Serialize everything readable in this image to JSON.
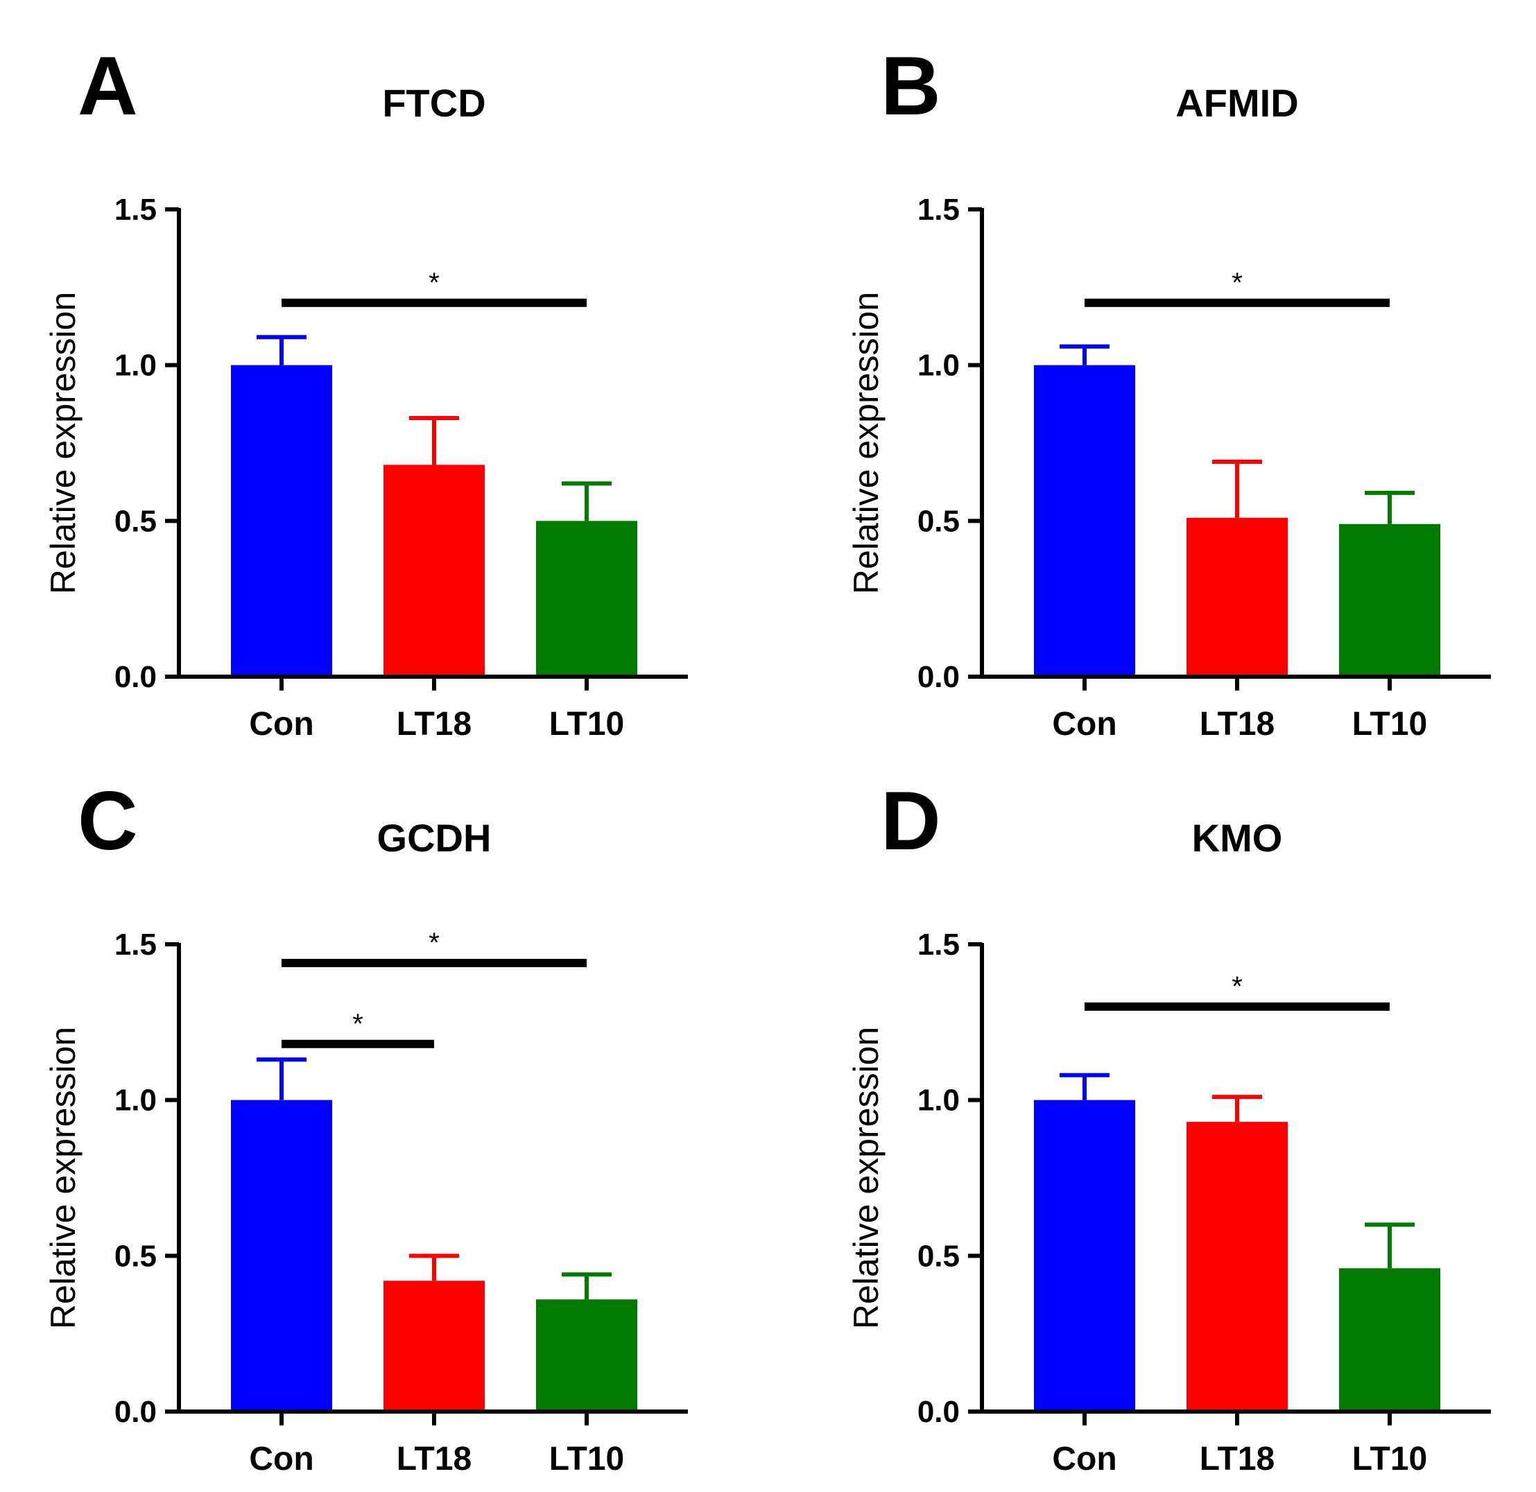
{
  "figure": {
    "background": "#ffffff"
  },
  "chart_data": [
    {
      "type": "bar",
      "panel": "A",
      "title": "FTCD",
      "xlabel": "",
      "ylabel": "Relative expression",
      "ylim": [
        0,
        1.5
      ],
      "yticks": [
        0.0,
        0.5,
        1.0,
        1.5
      ],
      "ytick_labels": [
        "0.0",
        "0.5",
        "1.0",
        "1.5"
      ],
      "categories": [
        "Con",
        "LT18",
        "LT10"
      ],
      "values": [
        1.0,
        0.68,
        0.5
      ],
      "errors": [
        0.09,
        0.15,
        0.12
      ],
      "colors": [
        "#0000ff",
        "#ff0000",
        "#007a00"
      ],
      "significance": [
        {
          "from": 0,
          "to": 2,
          "label": "*",
          "y": 1.2
        }
      ]
    },
    {
      "type": "bar",
      "panel": "B",
      "title": "AFMID",
      "xlabel": "",
      "ylabel": "Relative expression",
      "ylim": [
        0,
        1.5
      ],
      "yticks": [
        0.0,
        0.5,
        1.0,
        1.5
      ],
      "ytick_labels": [
        "0.0",
        "0.5",
        "1.0",
        "1.5"
      ],
      "categories": [
        "Con",
        "LT18",
        "LT10"
      ],
      "values": [
        1.0,
        0.51,
        0.49
      ],
      "errors": [
        0.06,
        0.18,
        0.1
      ],
      "colors": [
        "#0000ff",
        "#ff0000",
        "#007a00"
      ],
      "significance": [
        {
          "from": 0,
          "to": 2,
          "label": "*",
          "y": 1.2
        }
      ]
    },
    {
      "type": "bar",
      "panel": "C",
      "title": "GCDH",
      "xlabel": "",
      "ylabel": "Relative expression",
      "ylim": [
        0,
        1.5
      ],
      "yticks": [
        0.0,
        0.5,
        1.0,
        1.5
      ],
      "ytick_labels": [
        "0.0",
        "0.5",
        "1.0",
        "1.5"
      ],
      "categories": [
        "Con",
        "LT18",
        "LT10"
      ],
      "values": [
        1.0,
        0.42,
        0.36
      ],
      "errors": [
        0.13,
        0.08,
        0.08
      ],
      "colors": [
        "#0000ff",
        "#ff0000",
        "#007a00"
      ],
      "significance": [
        {
          "from": 0,
          "to": 2,
          "label": "*",
          "y": 1.44
        },
        {
          "from": 0,
          "to": 1,
          "label": "*",
          "y": 1.18
        }
      ]
    },
    {
      "type": "bar",
      "panel": "D",
      "title": "KMO",
      "xlabel": "",
      "ylabel": "Relative expression",
      "ylim": [
        0,
        1.5
      ],
      "yticks": [
        0.0,
        0.5,
        1.0,
        1.5
      ],
      "ytick_labels": [
        "0.0",
        "0.5",
        "1.0",
        "1.5"
      ],
      "categories": [
        "Con",
        "LT18",
        "LT10"
      ],
      "values": [
        1.0,
        0.93,
        0.46
      ],
      "errors": [
        0.08,
        0.08,
        0.14
      ],
      "colors": [
        "#0000ff",
        "#ff0000",
        "#007a00"
      ],
      "significance": [
        {
          "from": 0,
          "to": 2,
          "label": "*",
          "y": 1.3
        }
      ]
    }
  ]
}
